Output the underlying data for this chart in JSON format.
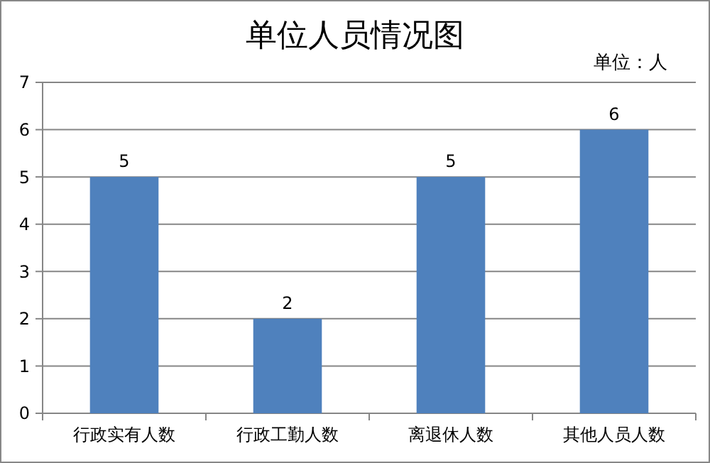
{
  "chart_data": {
    "type": "bar",
    "title": "单位人员情况图",
    "annotations": [
      "单位：人"
    ],
    "categories": [
      "行政实有人数",
      "行政工勤人数",
      "离退休人数",
      "其他人员人数"
    ],
    "values": [
      5,
      2,
      5,
      6
    ],
    "color": "#4f81bd",
    "ylim": [
      0,
      7
    ],
    "yticks": [
      0,
      1,
      2,
      3,
      4,
      5,
      6,
      7
    ],
    "grid": "y",
    "data_labels": true
  }
}
